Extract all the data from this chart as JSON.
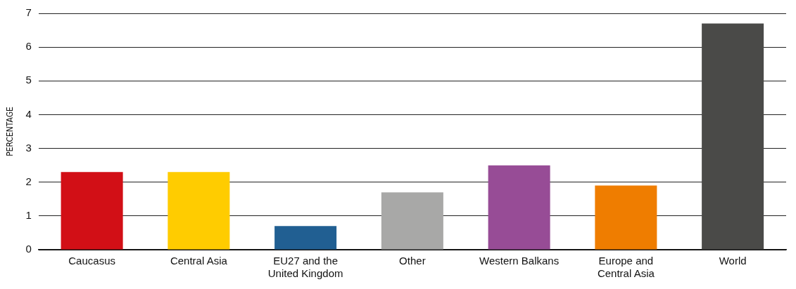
{
  "chart_data": {
    "type": "bar",
    "ylabel": "PERCENTAGE",
    "categories": [
      "Caucasus",
      "Central Asia",
      "EU27 and the United Kingdom",
      "Other",
      "Western Balkans",
      "Europe and Central Asia",
      "World"
    ],
    "values": [
      2.3,
      2.3,
      0.7,
      1.7,
      2.5,
      1.9,
      6.7
    ],
    "colors": [
      "#d20f16",
      "#ffcc00",
      "#215f92",
      "#a8a8a7",
      "#974c96",
      "#ef7d00",
      "#4a4a48"
    ],
    "ylim": [
      0,
      7
    ],
    "yticks": [
      0,
      1,
      2,
      3,
      4,
      5,
      6,
      7
    ],
    "grid": "y",
    "legend": false
  }
}
